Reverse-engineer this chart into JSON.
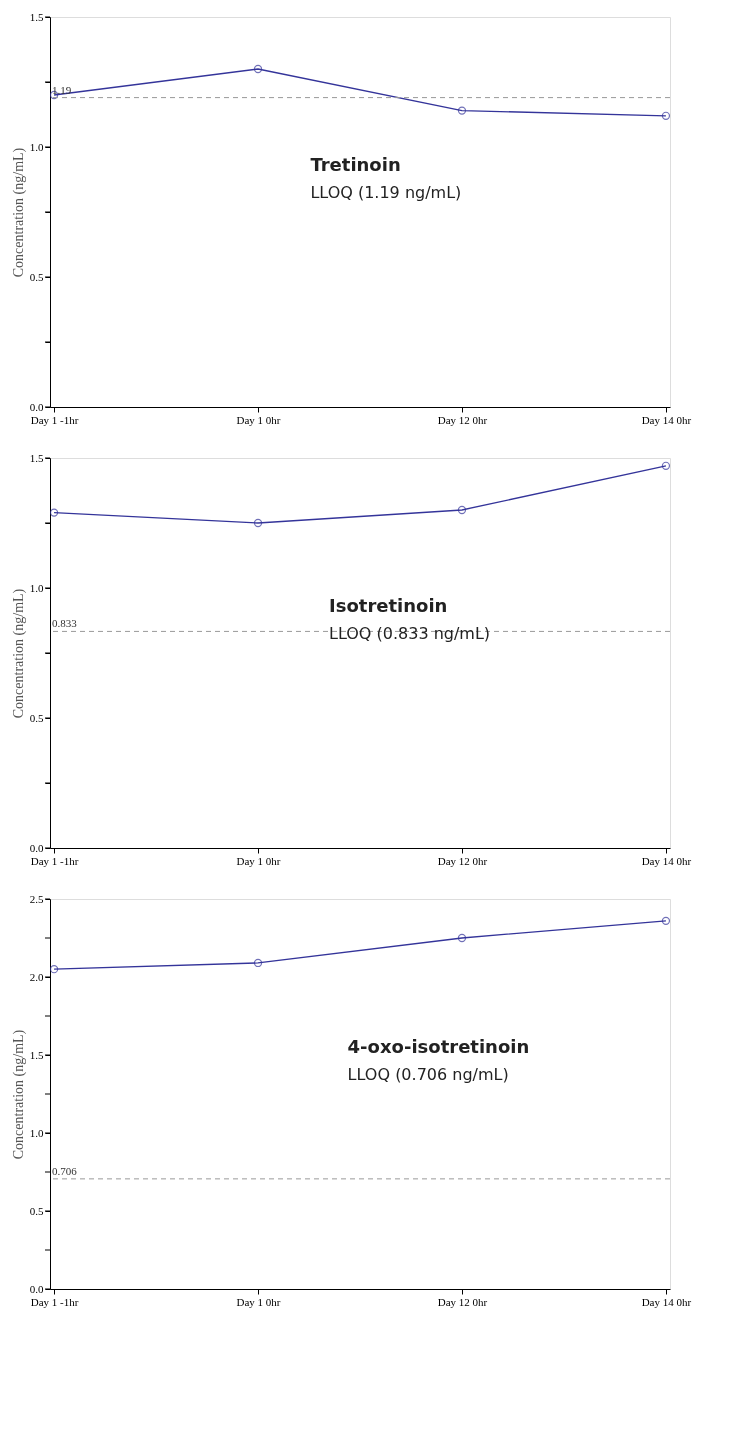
{
  "chart_data": [
    {
      "type": "line",
      "ylabel": "Concentration (ng/mL)",
      "categories": [
        "Day 1 -1hr",
        "Day 1 0hr",
        "Day 12 0hr",
        "Day 14 0hr"
      ],
      "series": [
        {
          "color": "#34349a",
          "values": [
            1.2,
            1.3,
            1.14,
            1.12
          ]
        }
      ],
      "ylim": [
        0,
        1.5
      ],
      "yticks": [
        {
          "value": 0,
          "label": "0.0"
        },
        {
          "value": 0.25,
          "label": null
        },
        {
          "value": 0.5,
          "label": "0.5"
        },
        {
          "value": 0.75,
          "label": null
        },
        {
          "value": 1.0,
          "label": "1.0"
        },
        {
          "value": 1.25,
          "label": null
        },
        {
          "value": 1.5,
          "label": "1.5"
        }
      ],
      "ref_lines": [
        {
          "axis": "y",
          "value": 1.19,
          "label": "1.19",
          "color": "#999999",
          "line_style": "dashed"
        }
      ],
      "annotations": [
        "Tretinoin",
        "LLOQ (1.19 ng/mL)"
      ],
      "marker": "circle",
      "line_style": "solid",
      "grid": false
    },
    {
      "type": "line",
      "ylabel": "Concentration (ng/mL)",
      "categories": [
        "Day 1 -1hr",
        "Day 1 0hr",
        "Day 12 0hr",
        "Day 14 0hr"
      ],
      "series": [
        {
          "color": "#34349a",
          "values": [
            1.29,
            1.25,
            1.3,
            1.47
          ]
        }
      ],
      "ylim": [
        0,
        1.5
      ],
      "yticks": [
        {
          "value": 0,
          "label": "0.0"
        },
        {
          "value": 0.25,
          "label": null
        },
        {
          "value": 0.5,
          "label": "0.5"
        },
        {
          "value": 0.75,
          "label": null
        },
        {
          "value": 1.0,
          "label": "1.0"
        },
        {
          "value": 1.25,
          "label": null
        },
        {
          "value": 1.5,
          "label": "1.5"
        }
      ],
      "ref_lines": [
        {
          "axis": "y",
          "value": 0.833,
          "label": "0.833",
          "color": "#999999",
          "line_style": "dashed"
        }
      ],
      "annotations": [
        "Isotretinoin",
        "LLOQ (0.833 ng/mL)"
      ],
      "marker": "circle",
      "line_style": "solid",
      "grid": false
    },
    {
      "type": "line",
      "ylabel": "Concentration (ng/mL)",
      "categories": [
        "Day 1 -1hr",
        "Day 1 0hr",
        "Day 12 0hr",
        "Day 14 0hr"
      ],
      "series": [
        {
          "color": "#34349a",
          "values": [
            2.05,
            2.09,
            2.25,
            2.36
          ]
        }
      ],
      "ylim": [
        0,
        2.5
      ],
      "yticks": [
        {
          "value": 0,
          "label": "0.0"
        },
        {
          "value": 0.25,
          "label": null
        },
        {
          "value": 0.5,
          "label": "0.5"
        },
        {
          "value": 0.75,
          "label": null
        },
        {
          "value": 1.0,
          "label": "1.0"
        },
        {
          "value": 1.25,
          "label": null
        },
        {
          "value": 1.5,
          "label": "1.5"
        },
        {
          "value": 1.75,
          "label": null
        },
        {
          "value": 2.0,
          "label": "2.0"
        },
        {
          "value": 2.25,
          "label": null
        },
        {
          "value": 2.5,
          "label": "2.5"
        }
      ],
      "ref_lines": [
        {
          "axis": "y",
          "value": 0.706,
          "label": "0.706",
          "color": "#999999",
          "line_style": "dashed"
        }
      ],
      "annotations": [
        "4-oxo-isotretinoin",
        "LLOQ (0.706 ng/mL)"
      ],
      "marker": "circle",
      "line_style": "solid",
      "grid": false
    }
  ]
}
